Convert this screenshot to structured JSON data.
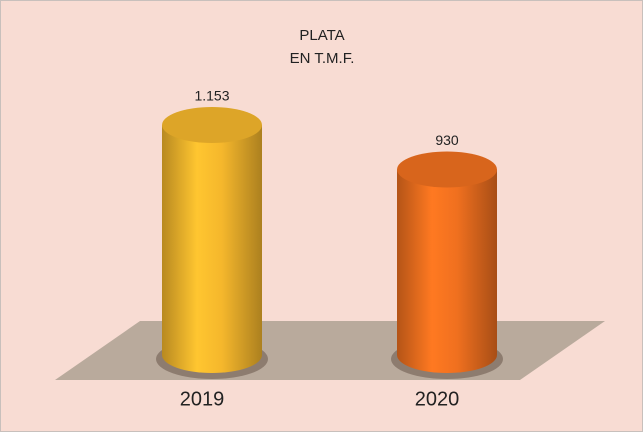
{
  "chart_data": {
    "type": "bar3d",
    "title": "PLATA",
    "subtitle": "EN T.M.F.",
    "categories": [
      "2019",
      "2020"
    ],
    "values": [
      1153,
      930
    ],
    "value_labels": [
      "1.153",
      "930"
    ],
    "colors": [
      "#f5b72c",
      "#f0701f"
    ]
  }
}
